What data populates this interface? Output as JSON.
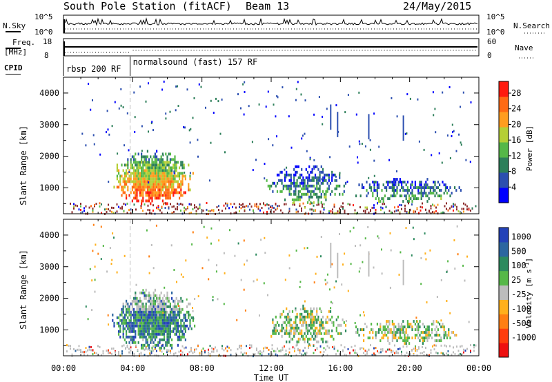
{
  "header": {
    "title": "South Pole Station (fitACF)",
    "beam": "Beam 13",
    "date": "24/May/2015"
  },
  "params": {
    "nsky_label": "N.Sky",
    "nsky_top": "10^5",
    "nsky_bottom": "10^0",
    "nsearch_label": "N.Search",
    "nsearch_top": "10^5",
    "nsearch_bottom": "10^0",
    "freq_label": "Freq.",
    "freq_unit": "[MHz]",
    "freq_top": "18",
    "freq_bottom": "8",
    "nave_label": "Nave",
    "nave_top": "60",
    "nave_bottom": "0",
    "cpid_label": "CPID",
    "cpid_segments": [
      {
        "label": "rbsp 200 RF",
        "start_hour": 0
      },
      {
        "label": "normalsound (fast) 157 RF",
        "start_hour": 3.85
      }
    ]
  },
  "chart_data": [
    {
      "type": "heatmap",
      "panel": "power",
      "xlabel": "Time UT",
      "ylabel": "Slant Range [km]",
      "x_range_hours": [
        0,
        24
      ],
      "x_tick_labels": [
        "00:00",
        "04:00",
        "08:00",
        "12:00",
        "16:00",
        "20:00",
        "00:00"
      ],
      "ylim": [
        180,
        4500
      ],
      "y_ticks": [
        1000,
        2000,
        3000,
        4000
      ],
      "colorbar": {
        "label": "Power [dB]",
        "range": [
          0,
          31
        ],
        "ticks": [
          4,
          8,
          12,
          16,
          20,
          24,
          28
        ]
      },
      "echo_regions": [
        {
          "t_start": 2.8,
          "t_end": 7.6,
          "r_low": 500,
          "r_high": 2200,
          "level": "strong",
          "value_range": [
            8,
            28
          ]
        },
        {
          "t_start": 11.7,
          "t_end": 16.3,
          "r_low": 500,
          "r_high": 1800,
          "level": "moderate",
          "value_range": [
            4,
            16
          ]
        },
        {
          "t_start": 16.6,
          "t_end": 23.0,
          "r_low": 550,
          "r_high": 1400,
          "level": "moderate",
          "value_range": [
            4,
            24
          ]
        }
      ]
    },
    {
      "type": "heatmap",
      "panel": "velocity",
      "xlabel": "Time UT",
      "ylabel": "Slant Range [km]",
      "x_range_hours": [
        0,
        24
      ],
      "x_tick_labels": [
        "00:00",
        "04:00",
        "08:00",
        "12:00",
        "16:00",
        "20:00",
        "00:00"
      ],
      "ylim": [
        180,
        4500
      ],
      "y_ticks": [
        1000,
        2000,
        3000,
        4000
      ],
      "colorbar": {
        "label": "Velocity [m s^-1]",
        "tick_labels": [
          "1000",
          "500",
          "100",
          "25",
          "-25",
          "-100",
          "-500",
          "-1000"
        ]
      },
      "echo_regions": [
        {
          "t_start": 2.8,
          "t_end": 7.6,
          "r_low": 400,
          "r_high": 2300,
          "level": "receding",
          "value_range": [
            -1000,
            -100
          ]
        },
        {
          "t_start": 11.7,
          "t_end": 16.3,
          "r_low": 500,
          "r_high": 1800,
          "level": "mixed",
          "value_range": [
            -500,
            100
          ]
        },
        {
          "t_start": 16.6,
          "t_end": 23.0,
          "r_low": 550,
          "r_high": 1400,
          "level": "mixed",
          "value_range": [
            -500,
            100
          ]
        }
      ]
    }
  ],
  "colors": {
    "power_scale": [
      "#0000ff",
      "#2c4fb0",
      "#2d7f5a",
      "#55b848",
      "#b5cf36",
      "#ff9d1f",
      "#ff6a13",
      "#ff1a0e"
    ],
    "velocity_scale": [
      "#2442b8",
      "#2c66a0",
      "#2d8a5e",
      "#56b848",
      "#bcbcbc",
      "#ffb01c",
      "#ff7f12",
      "#ff3e0c",
      "#ee1010"
    ],
    "ground_scatter": "#8b2a2a"
  }
}
